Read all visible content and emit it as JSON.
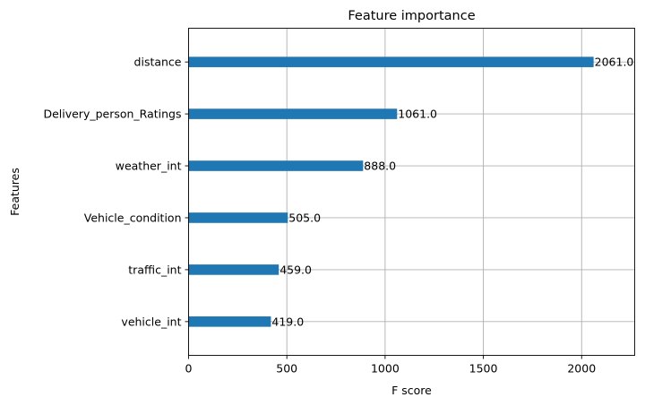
{
  "chart_data": {
    "type": "bar",
    "orientation": "horizontal",
    "title": "Feature importance",
    "xlabel": "F score",
    "ylabel": "Features",
    "categories": [
      "vehicle_int",
      "traffic_int",
      "Vehicle_condition",
      "weather_int",
      "Delivery_person_Ratings",
      "distance"
    ],
    "values": [
      419.0,
      459.0,
      505.0,
      888.0,
      1061.0,
      2061.0
    ],
    "data_labels": [
      "419.0",
      "459.0",
      "505.0",
      "888.0",
      "1061.0",
      "2061.0"
    ],
    "xlim": [
      0,
      2270
    ],
    "xticks": [
      0,
      500,
      1000,
      1500,
      2000
    ],
    "xtick_labels": [
      "0",
      "500",
      "1000",
      "1500",
      "2000"
    ],
    "grid": true,
    "bar_color": "#1f77b4"
  }
}
